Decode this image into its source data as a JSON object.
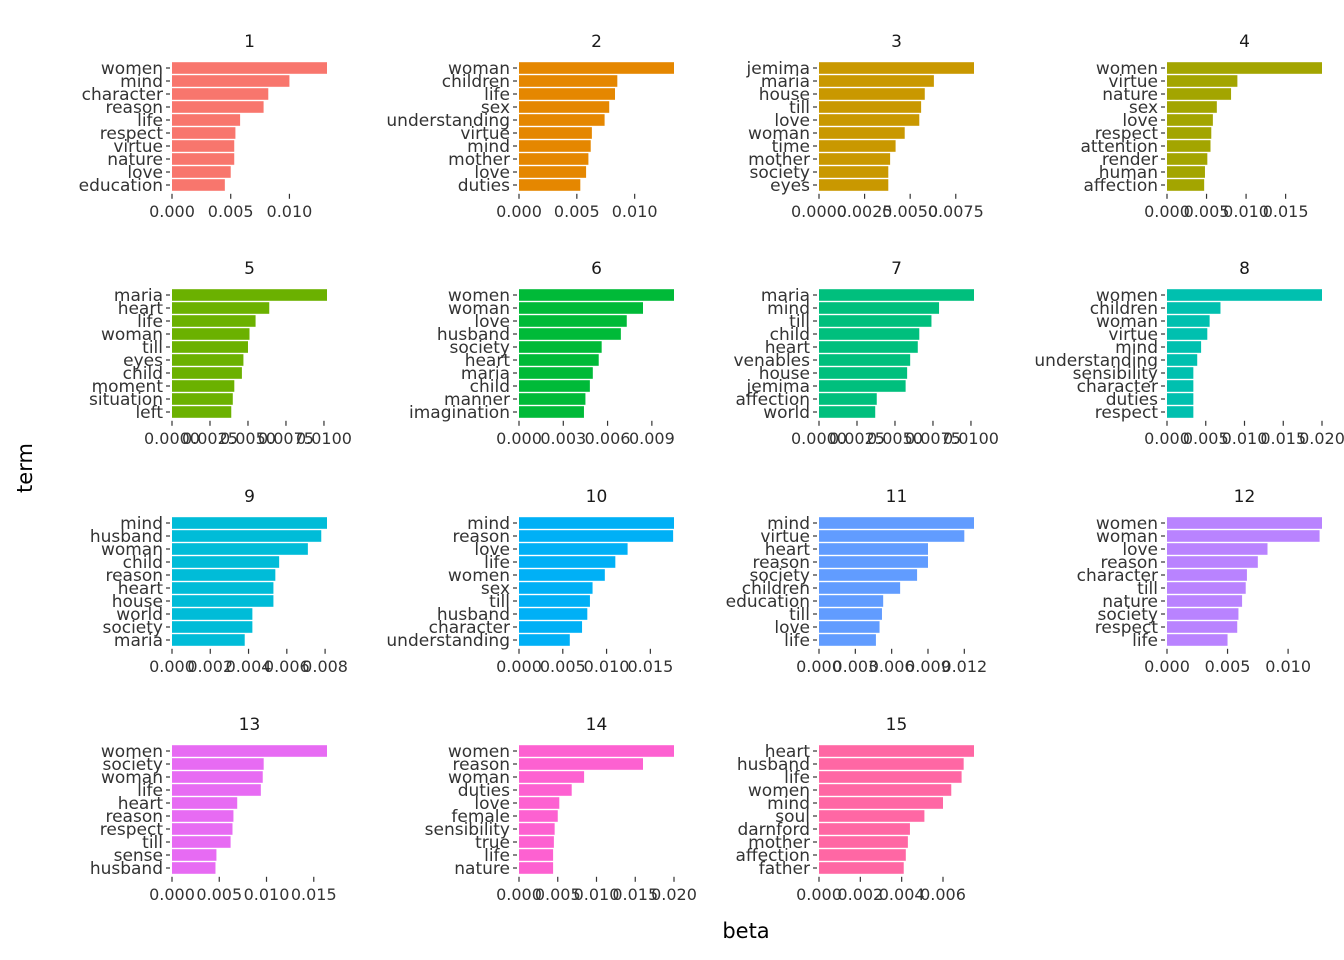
{
  "chart_data": {
    "type": "bar",
    "orientation": "horizontal",
    "xlabel": "beta",
    "ylabel": "term",
    "grid": false,
    "legend": "none",
    "facets": [
      {
        "label": "1",
        "color": "#F8766D",
        "xlim": [
          0,
          0.0132
        ],
        "ticks": [
          "0.000",
          "0.005",
          "0.010"
        ],
        "tick_values": [
          0,
          0.005,
          0.01
        ],
        "terms": [
          "women",
          "mind",
          "character",
          "reason",
          "life",
          "respect",
          "virtue",
          "nature",
          "love",
          "education"
        ],
        "values": [
          0.0132,
          0.01,
          0.0082,
          0.0078,
          0.0058,
          0.0054,
          0.0053,
          0.0053,
          0.005,
          0.0045
        ]
      },
      {
        "label": "2",
        "color": "#E58700",
        "xlim": [
          0,
          0.0134
        ],
        "ticks": [
          "0.000",
          "0.005",
          "0.010"
        ],
        "tick_values": [
          0,
          0.005,
          0.01
        ],
        "terms": [
          "woman",
          "children",
          "life",
          "sex",
          "understanding",
          "virtue",
          "mind",
          "mother",
          "love",
          "duties"
        ],
        "values": [
          0.0134,
          0.0085,
          0.0083,
          0.0078,
          0.0074,
          0.0063,
          0.0062,
          0.006,
          0.0058,
          0.0053
        ]
      },
      {
        "label": "3",
        "color": "#C99800",
        "xlim": [
          0,
          0.0085
        ],
        "ticks": [
          "0.0000",
          "0.0025",
          "0.0050",
          "0.0075"
        ],
        "tick_values": [
          0,
          0.0025,
          0.005,
          0.0075
        ],
        "terms": [
          "jemima",
          "maria",
          "house",
          "till",
          "love",
          "woman",
          "time",
          "mother",
          "society",
          "eyes"
        ],
        "values": [
          0.0085,
          0.0063,
          0.0058,
          0.0056,
          0.0055,
          0.0047,
          0.0042,
          0.0039,
          0.0038,
          0.0038
        ]
      },
      {
        "label": "4",
        "color": "#A3A500",
        "xlim": [
          0,
          0.0196
        ],
        "ticks": [
          "0.000",
          "0.005",
          "0.010",
          "0.015"
        ],
        "tick_values": [
          0,
          0.005,
          0.01,
          0.015
        ],
        "terms": [
          "women",
          "virtue",
          "nature",
          "sex",
          "love",
          "respect",
          "attention",
          "render",
          "human",
          "affection"
        ],
        "values": [
          0.0196,
          0.0089,
          0.0081,
          0.0063,
          0.0058,
          0.0056,
          0.0055,
          0.0051,
          0.0048,
          0.0047
        ]
      },
      {
        "label": "5",
        "color": "#6BB100",
        "xlim": [
          0,
          0.0102
        ],
        "ticks": [
          "0.0000",
          "0.0025",
          "0.0050",
          "0.0075",
          "0.0100"
        ],
        "tick_values": [
          0,
          0.0025,
          0.005,
          0.0075,
          0.01
        ],
        "terms": [
          "maria",
          "heart",
          "life",
          "woman",
          "till",
          "eyes",
          "child",
          "moment",
          "situation",
          "left"
        ],
        "values": [
          0.0102,
          0.0064,
          0.0055,
          0.0051,
          0.005,
          0.0047,
          0.0046,
          0.0041,
          0.004,
          0.0039
        ]
      },
      {
        "label": "6",
        "color": "#00BA38",
        "xlim": [
          0,
          0.0105
        ],
        "ticks": [
          "0.000",
          "0.003",
          "0.006",
          "0.009"
        ],
        "tick_values": [
          0,
          0.003,
          0.006,
          0.009
        ],
        "terms": [
          "women",
          "woman",
          "love",
          "husband",
          "society",
          "heart",
          "maria",
          "child",
          "manner",
          "imagination"
        ],
        "values": [
          0.0105,
          0.0084,
          0.0073,
          0.0069,
          0.0056,
          0.0054,
          0.005,
          0.0048,
          0.0045,
          0.0044
        ]
      },
      {
        "label": "7",
        "color": "#00BF7D",
        "xlim": [
          0,
          0.0102
        ],
        "ticks": [
          "0.0000",
          "0.0025",
          "0.0050",
          "0.0075",
          "0.0100"
        ],
        "tick_values": [
          0,
          0.0025,
          0.005,
          0.0075,
          0.01
        ],
        "terms": [
          "maria",
          "mind",
          "till",
          "child",
          "heart",
          "venables",
          "house",
          "jemima",
          "affection",
          "world"
        ],
        "values": [
          0.0102,
          0.0079,
          0.0074,
          0.0066,
          0.0065,
          0.006,
          0.0058,
          0.0057,
          0.0038,
          0.0037
        ]
      },
      {
        "label": "8",
        "color": "#00C0AF",
        "xlim": [
          0,
          0.02
        ],
        "ticks": [
          "0.000",
          "0.005",
          "0.010",
          "0.015",
          "0.020"
        ],
        "tick_values": [
          0,
          0.005,
          0.01,
          0.015,
          0.02
        ],
        "terms": [
          "women",
          "children",
          "woman",
          "virtue",
          "mind",
          "understanding",
          "sensibility",
          "character",
          "duties",
          "respect"
        ],
        "values": [
          0.02,
          0.0069,
          0.0055,
          0.0052,
          0.0044,
          0.0039,
          0.0034,
          0.0034,
          0.0034,
          0.0034
        ]
      },
      {
        "label": "9",
        "color": "#00BCD8",
        "xlim": [
          0,
          0.0081
        ],
        "ticks": [
          "0.000",
          "0.002",
          "0.004",
          "0.006",
          "0.008"
        ],
        "tick_values": [
          0,
          0.002,
          0.004,
          0.006,
          0.008
        ],
        "terms": [
          "mind",
          "husband",
          "woman",
          "child",
          "reason",
          "heart",
          "house",
          "world",
          "society",
          "maria"
        ],
        "values": [
          0.0081,
          0.0078,
          0.0071,
          0.0056,
          0.0054,
          0.0053,
          0.0053,
          0.0042,
          0.0042,
          0.0038
        ]
      },
      {
        "label": "10",
        "color": "#00B0F6",
        "xlim": [
          0,
          0.0177
        ],
        "ticks": [
          "0.000",
          "0.005",
          "0.010",
          "0.015"
        ],
        "tick_values": [
          0,
          0.005,
          0.01,
          0.015
        ],
        "terms": [
          "mind",
          "reason",
          "love",
          "life",
          "women",
          "sex",
          "till",
          "husband",
          "character",
          "understanding"
        ],
        "values": [
          0.0177,
          0.0176,
          0.0124,
          0.011,
          0.0098,
          0.0084,
          0.0081,
          0.0078,
          0.0072,
          0.0058
        ]
      },
      {
        "label": "11",
        "color": "#619CFF",
        "xlim": [
          0,
          0.0128
        ],
        "ticks": [
          "0.000",
          "0.003",
          "0.006",
          "0.009",
          "0.012"
        ],
        "tick_values": [
          0,
          0.003,
          0.006,
          0.009,
          0.012
        ],
        "terms": [
          "mind",
          "virtue",
          "heart",
          "reason",
          "society",
          "children",
          "education",
          "till",
          "love",
          "life"
        ],
        "values": [
          0.0128,
          0.012,
          0.009,
          0.009,
          0.0081,
          0.0067,
          0.0053,
          0.0052,
          0.005,
          0.0047
        ]
      },
      {
        "label": "12",
        "color": "#B983FF",
        "xlim": [
          0,
          0.0128
        ],
        "ticks": [
          "0.000",
          "0.005",
          "0.010"
        ],
        "tick_values": [
          0,
          0.005,
          0.01
        ],
        "terms": [
          "women",
          "woman",
          "love",
          "reason",
          "character",
          "till",
          "nature",
          "society",
          "respect",
          "life"
        ],
        "values": [
          0.0128,
          0.0126,
          0.0083,
          0.0075,
          0.0066,
          0.0065,
          0.0062,
          0.0059,
          0.0058,
          0.005
        ]
      },
      {
        "label": "13",
        "color": "#E76BF3",
        "xlim": [
          0,
          0.0164
        ],
        "ticks": [
          "0.000",
          "0.005",
          "0.010",
          "0.015"
        ],
        "tick_values": [
          0,
          0.005,
          0.01,
          0.015
        ],
        "terms": [
          "women",
          "society",
          "woman",
          "life",
          "heart",
          "reason",
          "respect",
          "till",
          "sense",
          "husband"
        ],
        "values": [
          0.0164,
          0.0097,
          0.0096,
          0.0094,
          0.0069,
          0.0065,
          0.0064,
          0.0062,
          0.0047,
          0.0046
        ]
      },
      {
        "label": "14",
        "color": "#FD61D1",
        "xlim": [
          0,
          0.02
        ],
        "ticks": [
          "0.000",
          "0.005",
          "0.010",
          "0.015",
          "0.020"
        ],
        "tick_values": [
          0,
          0.005,
          0.01,
          0.015,
          0.02
        ],
        "terms": [
          "women",
          "reason",
          "woman",
          "duties",
          "love",
          "female",
          "sensibility",
          "true",
          "life",
          "nature"
        ],
        "values": [
          0.02,
          0.016,
          0.0084,
          0.0068,
          0.0052,
          0.005,
          0.0046,
          0.0045,
          0.0044,
          0.0044
        ]
      },
      {
        "label": "15",
        "color": "#FF67A4",
        "xlim": [
          0,
          0.0075
        ],
        "ticks": [
          "0.000",
          "0.002",
          "0.004",
          "0.006"
        ],
        "tick_values": [
          0,
          0.002,
          0.004,
          0.006
        ],
        "terms": [
          "heart",
          "husband",
          "life",
          "women",
          "mind",
          "soul",
          "darnford",
          "mother",
          "affection",
          "father"
        ],
        "values": [
          0.0075,
          0.007,
          0.0069,
          0.0064,
          0.006,
          0.0051,
          0.0044,
          0.0043,
          0.0042,
          0.0041
        ]
      }
    ]
  }
}
